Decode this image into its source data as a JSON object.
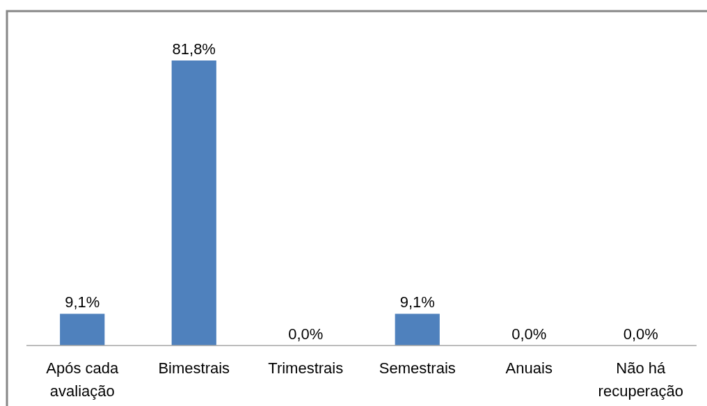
{
  "chart_data": {
    "type": "bar",
    "categories": [
      "Após cada avaliação",
      "Bimestrais",
      "Trimestrais",
      "Semestrais",
      "Anuais",
      "Não há recuperação"
    ],
    "values": [
      9.1,
      81.8,
      0.0,
      9.1,
      0.0,
      0.0
    ],
    "color": "#4f81bd",
    "value_labels": [
      "9,1%",
      "81,8%",
      "0,0%",
      "9,1%",
      "0,0%",
      "0,0%"
    ]
  }
}
